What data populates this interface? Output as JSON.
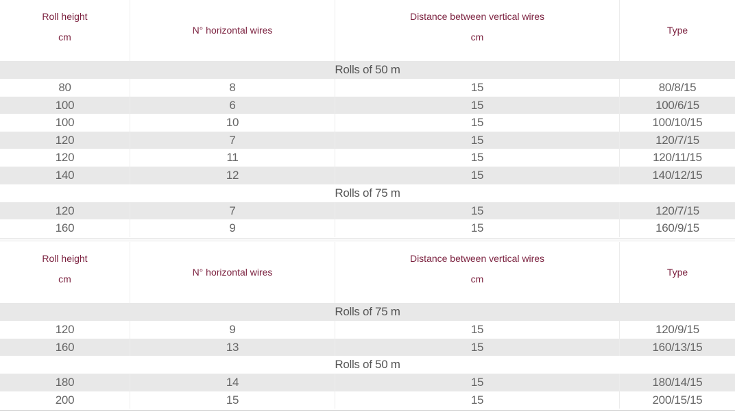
{
  "tables": [
    {
      "header": {
        "roll_height": "Roll height",
        "roll_height_unit": "cm",
        "horizontal_wires": "N° horizontal wires",
        "distance": "Distance between vertical wires",
        "distance_unit": "cm",
        "type": "Type"
      },
      "groups": [
        {
          "label": "Rolls of 50 m",
          "rows": [
            [
              "80",
              "8",
              "15",
              "80/8/15"
            ],
            [
              "100",
              "6",
              "15",
              "100/6/15"
            ],
            [
              "100",
              "10",
              "15",
              "100/10/15"
            ],
            [
              "120",
              "7",
              "15",
              "120/7/15"
            ],
            [
              "120",
              "11",
              "15",
              "120/11/15"
            ],
            [
              "140",
              "12",
              "15",
              "140/12/15"
            ]
          ]
        },
        {
          "label": "Rolls of 75 m",
          "rows": [
            [
              "120",
              "7",
              "15",
              "120/7/15"
            ],
            [
              "160",
              "9",
              "15",
              "160/9/15"
            ]
          ]
        }
      ]
    },
    {
      "header": {
        "roll_height": "Roll height",
        "roll_height_unit": "cm",
        "horizontal_wires": "N° horizontal wires",
        "distance": "Distance between vertical wires",
        "distance_unit": "cm",
        "type": "Type"
      },
      "groups": [
        {
          "label": "Rolls of 75 m",
          "rows": [
            [
              "120",
              "9",
              "15",
              "120/9/15"
            ],
            [
              "160",
              "13",
              "15",
              "160/13/15"
            ]
          ]
        },
        {
          "label": "Rolls of 50 m",
          "rows": [
            [
              "180",
              "14",
              "15",
              "180/14/15"
            ],
            [
              "200",
              "15",
              "15",
              "200/15/15"
            ]
          ]
        }
      ]
    }
  ],
  "colors": {
    "header_text": "#7a1f3d",
    "stripe": "#e8e8e8",
    "body_text": "#666666"
  }
}
